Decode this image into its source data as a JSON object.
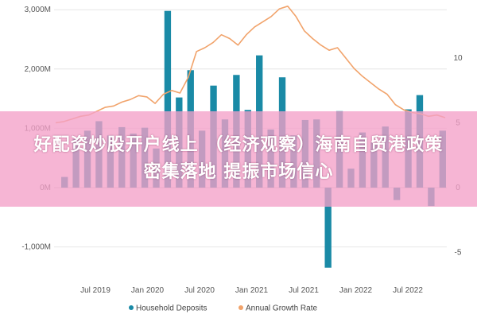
{
  "chart_data": {
    "type": "bar+line",
    "title": "",
    "legend_position": "bottom",
    "grid": true,
    "y_left": {
      "ylim": [
        -1300,
        3100
      ],
      "ticks": [
        "3,000M",
        "2,000M",
        "1,000M",
        "0M",
        "-1,000M"
      ],
      "tick_values": [
        3000,
        2000,
        1000,
        0,
        -1000
      ]
    },
    "y_right": {
      "ylim": [
        -8.2,
        14
      ],
      "ticks": [
        "10",
        "5",
        "0",
        "-5"
      ],
      "tick_values": [
        10,
        5,
        0,
        -5
      ]
    },
    "x_ticks": [
      "Jul 2019",
      "Jan 2020",
      "Jul 2020",
      "Jan 2021",
      "Jul 2021",
      "Jan 2022",
      "Jul 2022"
    ],
    "series": [
      {
        "name": "Household Deposits",
        "type": "bar",
        "axis": "left",
        "color": "#1a8aa6",
        "values": [
          180,
          820,
          960,
          1120,
          880,
          1020,
          910,
          1010,
          660,
          2980,
          1520,
          1980,
          960,
          1720,
          1150,
          1900,
          1310,
          2230,
          980,
          1860,
          880,
          1140,
          1150,
          -1350,
          1290,
          320,
          930,
          760,
          1030,
          -210,
          1320,
          1560,
          -310,
          960
        ]
      },
      {
        "name": "Annual Growth Rate",
        "type": "line",
        "axis": "right",
        "color": "#f1a36b",
        "values": [
          5.0,
          5.1,
          5.3,
          5.5,
          5.6,
          5.9,
          6.2,
          6.3,
          6.6,
          6.8,
          7.1,
          7.0,
          6.5,
          7.2,
          7.5,
          7.3,
          8.5,
          10.5,
          10.8,
          11.2,
          11.8,
          11.5,
          11.0,
          11.8,
          12.4,
          12.8,
          13.2,
          13.8,
          14.0,
          13.2,
          12.1,
          11.5,
          11.0,
          10.6,
          10.8,
          10.0,
          9.2,
          8.6,
          8.1,
          7.6,
          7.2,
          6.4,
          6.0,
          5.8,
          5.7,
          5.5,
          5.6,
          5.4
        ]
      }
    ]
  },
  "overlay": {
    "line1": "好配资炒股开户线上 （经济观察）海南自贸港政策",
    "line2": "密集落地 提振市场信心"
  }
}
